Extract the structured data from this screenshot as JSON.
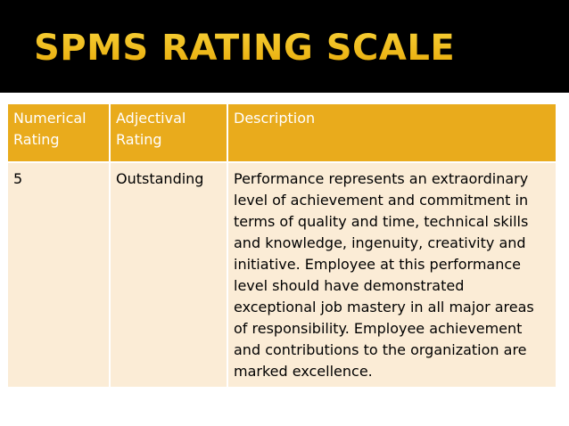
{
  "slide": {
    "title": "SPMS RATING SCALE"
  },
  "table": {
    "headers": [
      "Numerical Rating",
      "Adjectival Rating",
      "Description"
    ],
    "rows": [
      {
        "numerical": "5",
        "adjectival": "Outstanding",
        "description": "Performance represents an extraordinary level of achievement and commitment in terms of quality and time, technical skills and knowledge, ingenuity, creativity and initiative. Employee at this performance level should have demonstrated exceptional job mastery in all major areas of responsibility. Employee achievement and contributions to the organization are marked excellence."
      }
    ]
  },
  "colors": {
    "header_band": "#000000",
    "title": "#f3c218",
    "table_header": "#e9ab1c",
    "table_body": "#fbecd6"
  }
}
